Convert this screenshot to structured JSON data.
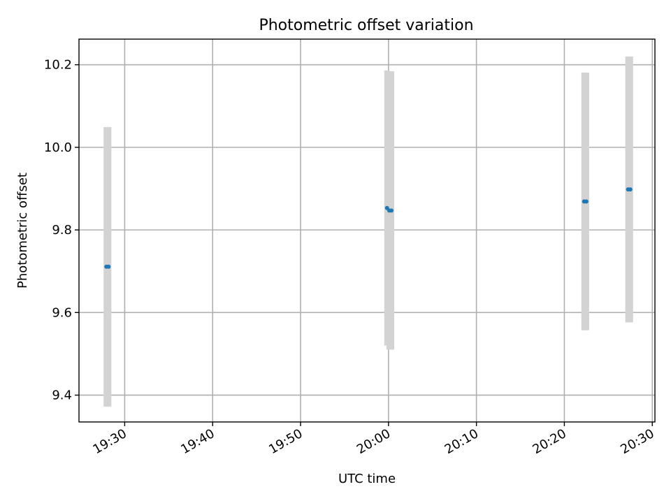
{
  "chart_data": {
    "type": "scatter",
    "title": "Photometric offset variation",
    "xlabel": "UTC time",
    "ylabel": "Photometric offset",
    "x_tick_labels": [
      "19:30",
      "19:40",
      "19:50",
      "20:00",
      "20:10",
      "20:20",
      "20:30"
    ],
    "x_tick_minutes": [
      1170,
      1180,
      1190,
      1200,
      1210,
      1220,
      1230
    ],
    "y_ticks": [
      9.4,
      9.6,
      9.8,
      10.0,
      10.2
    ],
    "y_tick_labels": [
      "9.4",
      "9.6",
      "9.8",
      "10.0",
      "10.2"
    ],
    "xlim": [
      1164.8,
      1230.3
    ],
    "ylim": [
      9.335,
      10.262
    ],
    "grid": true,
    "series_color": "#1f77b4",
    "errorbar_color": "#d3d3d3",
    "points": [
      {
        "time": "19:27:55",
        "y": 9.711,
        "ylow": 9.372,
        "yhigh": 10.049
      },
      {
        "time": "19:28:10",
        "y": 9.711,
        "ylow": 9.372,
        "yhigh": 10.049
      },
      {
        "time": "19:59:50",
        "y": 9.853,
        "ylow": 9.52,
        "yhigh": 10.186
      },
      {
        "time": "20:00:05",
        "y": 9.847,
        "ylow": 9.51,
        "yhigh": 10.184
      },
      {
        "time": "20:00:20",
        "y": 9.847,
        "ylow": 9.51,
        "yhigh": 10.184
      },
      {
        "time": "20:22:15",
        "y": 9.869,
        "ylow": 9.557,
        "yhigh": 10.181
      },
      {
        "time": "20:22:30",
        "y": 9.869,
        "ylow": 9.557,
        "yhigh": 10.181
      },
      {
        "time": "20:27:15",
        "y": 9.898,
        "ylow": 9.576,
        "yhigh": 10.22
      },
      {
        "time": "20:27:30",
        "y": 9.898,
        "ylow": 9.576,
        "yhigh": 10.22
      }
    ]
  }
}
